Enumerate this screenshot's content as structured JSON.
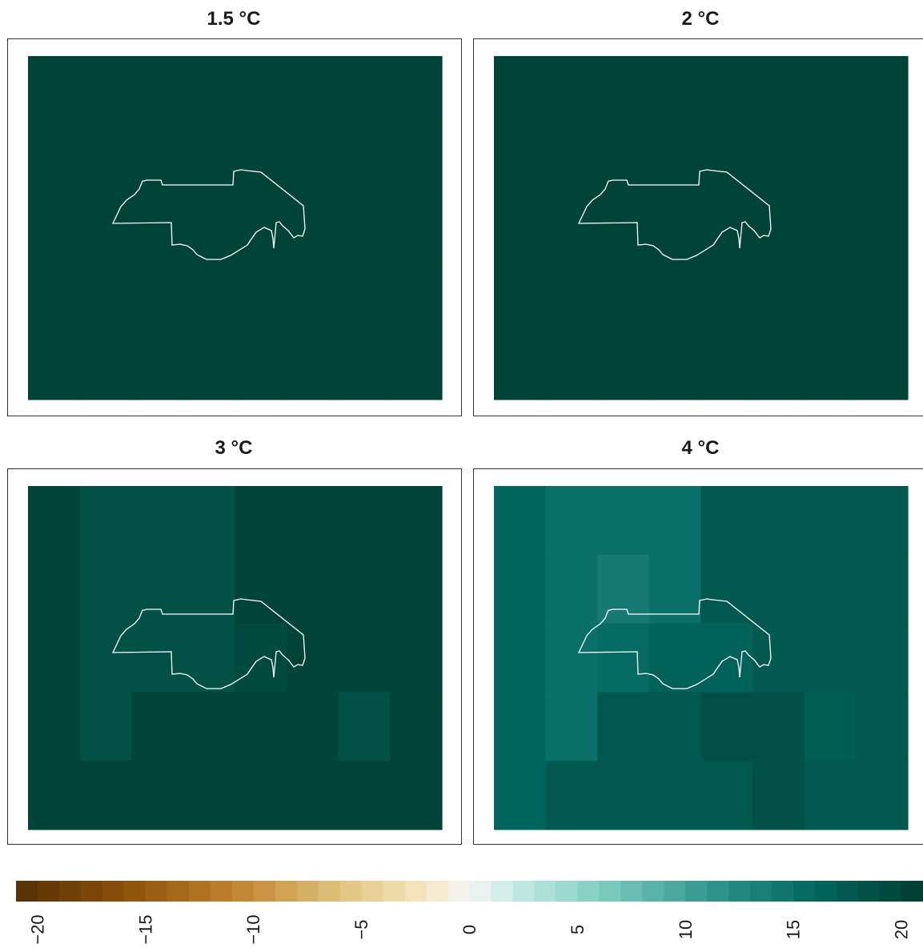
{
  "chart_data": {
    "type": "heatmap",
    "panels": [
      {
        "title": "1.5 °C",
        "grid": [
          [
            20,
            20,
            20,
            20,
            20,
            20,
            20,
            20
          ],
          [
            20,
            20,
            20,
            20,
            20,
            20,
            20,
            20
          ],
          [
            20,
            20,
            20,
            20,
            20,
            20,
            20,
            20
          ],
          [
            20,
            20,
            20,
            20,
            20,
            20,
            20,
            20
          ],
          [
            20,
            20,
            20,
            20,
            20,
            20,
            20,
            20
          ]
        ]
      },
      {
        "title": "2 °C",
        "grid": [
          [
            20,
            20,
            20,
            20,
            20,
            20,
            20,
            20
          ],
          [
            20,
            20,
            20,
            20,
            20,
            20,
            20,
            20
          ],
          [
            20,
            20,
            20,
            20,
            20,
            20,
            20,
            20
          ],
          [
            20,
            20,
            20,
            20,
            20,
            20,
            20,
            20
          ],
          [
            20,
            20,
            20,
            20,
            20,
            20,
            20,
            20
          ]
        ]
      },
      {
        "title": "3 °C",
        "grid": [
          [
            20,
            18.5,
            18.5,
            18.5,
            20,
            20,
            20,
            20
          ],
          [
            20,
            18.5,
            18.5,
            18.5,
            20,
            20,
            20,
            20
          ],
          [
            20,
            18.5,
            18.5,
            18.5,
            19.5,
            20,
            20,
            20
          ],
          [
            20,
            18.5,
            20,
            20,
            20,
            20,
            18.5,
            20
          ],
          [
            20,
            20,
            20,
            20,
            20,
            20,
            20,
            20
          ]
        ]
      },
      {
        "title": "4 °C",
        "grid": [
          [
            16,
            15,
            15,
            15,
            17.5,
            17.5,
            17.5,
            17.5
          ],
          [
            16,
            15,
            14,
            15,
            17.5,
            17.5,
            17.5,
            17.5
          ],
          [
            16,
            15,
            15.5,
            16.5,
            16.5,
            17.5,
            17.5,
            17.5
          ],
          [
            16,
            15,
            17.5,
            17.5,
            18.5,
            18.5,
            17,
            17.5
          ],
          [
            16,
            17.5,
            17.5,
            17.5,
            17.5,
            18.5,
            17.5,
            17.5
          ]
        ]
      }
    ],
    "colorbar": {
      "min": -21,
      "max": 21,
      "ticks": [
        -20,
        -15,
        -10,
        -5,
        0,
        5,
        10,
        15,
        20
      ],
      "tick_labels": [
        "−20",
        "−15",
        "−10",
        "−5",
        "0",
        "5",
        "10",
        "15",
        "20"
      ],
      "orientation": "horizontal",
      "placement": "bottom"
    },
    "colors": {
      "brown_end": "#543005",
      "neutral": "#f5f5f5",
      "teal_end": "#003c30",
      "outline": "#ffffff"
    }
  }
}
